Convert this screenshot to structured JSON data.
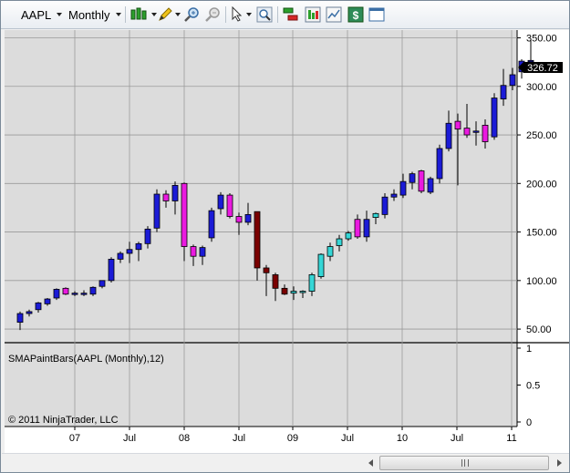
{
  "toolbar": {
    "instrument": "AAPL",
    "period": "Monthly",
    "icons": [
      "bar-type-icon",
      "drawing-tools-icon",
      "zoom-in-icon",
      "zoom-out-icon",
      "pointer-icon",
      "search-icon",
      "trade-icon",
      "data-box-icon",
      "chart-properties-icon",
      "currency-icon",
      "window-icon"
    ]
  },
  "chart": {
    "last_price_label": "326.72",
    "copyright": "© 2011 NinjaTrader, LLC",
    "indicator_label": "SMAPaintBars(AAPL (Monthly),12)",
    "background": "#dcdcdc",
    "colors": {
      "up_default": "#1b1bd6",
      "up_light": "#35d6d6",
      "down_default": "#ea1ae0",
      "down_dark": "#7a0000",
      "grid": "#9a9a9a",
      "last_price_tag": "#000000"
    }
  },
  "chart_data": {
    "type": "candlestick",
    "title": "",
    "price_axis": {
      "ticks": [
        "350.00",
        "300.00",
        "250.00",
        "200.00",
        "150.00",
        "100.00",
        "50.00"
      ],
      "range": [
        36,
        358
      ]
    },
    "indicator_axis": {
      "ticks": [
        "1",
        "0.5",
        "0"
      ],
      "range": [
        0,
        1
      ]
    },
    "time_axis": {
      "ticks": [
        "07",
        "Jul",
        "08",
        "Jul",
        "09",
        "Jul",
        "10",
        "Jul",
        "11"
      ]
    },
    "candles": [
      {
        "o": 57,
        "h": 68,
        "l": 49,
        "c": 66,
        "col": "up_default"
      },
      {
        "o": 66,
        "h": 70,
        "l": 63,
        "c": 68,
        "col": "up_default"
      },
      {
        "o": 70,
        "h": 78,
        "l": 67,
        "c": 77,
        "col": "up_default"
      },
      {
        "o": 76,
        "h": 82,
        "l": 74,
        "c": 81,
        "col": "up_default"
      },
      {
        "o": 82,
        "h": 92,
        "l": 80,
        "c": 91,
        "col": "up_default"
      },
      {
        "o": 92,
        "h": 93,
        "l": 85,
        "c": 86,
        "col": "down_default"
      },
      {
        "o": 86,
        "h": 89,
        "l": 84,
        "c": 87,
        "col": "up_default"
      },
      {
        "o": 87,
        "h": 90,
        "l": 84,
        "c": 86,
        "col": "up_default"
      },
      {
        "o": 86,
        "h": 94,
        "l": 84,
        "c": 93,
        "col": "up_default"
      },
      {
        "o": 94,
        "h": 100,
        "l": 92,
        "c": 100,
        "col": "up_default"
      },
      {
        "o": 100,
        "h": 124,
        "l": 98,
        "c": 122,
        "col": "up_default"
      },
      {
        "o": 122,
        "h": 130,
        "l": 118,
        "c": 128,
        "col": "up_default"
      },
      {
        "o": 128,
        "h": 140,
        "l": 118,
        "c": 132,
        "col": "up_default"
      },
      {
        "o": 132,
        "h": 140,
        "l": 120,
        "c": 138,
        "col": "up_default"
      },
      {
        "o": 138,
        "h": 156,
        "l": 133,
        "c": 153,
        "col": "up_default"
      },
      {
        "o": 154,
        "h": 194,
        "l": 150,
        "c": 189,
        "col": "up_default"
      },
      {
        "o": 189,
        "h": 193,
        "l": 175,
        "c": 182,
        "col": "down_default"
      },
      {
        "o": 182,
        "h": 202,
        "l": 168,
        "c": 198,
        "col": "up_default"
      },
      {
        "o": 200,
        "h": 201,
        "l": 120,
        "c": 135,
        "col": "down_default"
      },
      {
        "o": 135,
        "h": 137,
        "l": 115,
        "c": 125,
        "col": "down_default"
      },
      {
        "o": 125,
        "h": 136,
        "l": 116,
        "c": 134,
        "col": "up_default"
      },
      {
        "o": 144,
        "h": 175,
        "l": 140,
        "c": 172,
        "col": "up_default"
      },
      {
        "o": 174,
        "h": 191,
        "l": 168,
        "c": 188,
        "col": "up_default"
      },
      {
        "o": 188,
        "h": 190,
        "l": 164,
        "c": 166,
        "col": "down_default"
      },
      {
        "o": 166,
        "h": 170,
        "l": 147,
        "c": 160,
        "col": "down_default"
      },
      {
        "o": 160,
        "h": 180,
        "l": 157,
        "c": 168,
        "col": "up_default"
      },
      {
        "o": 171,
        "h": 171,
        "l": 100,
        "c": 113,
        "col": "down_dark"
      },
      {
        "o": 113,
        "h": 116,
        "l": 84,
        "c": 108,
        "col": "down_dark"
      },
      {
        "o": 106,
        "h": 108,
        "l": 79,
        "c": 92,
        "col": "down_dark"
      },
      {
        "o": 92,
        "h": 96,
        "l": 85,
        "c": 86,
        "col": "down_dark"
      },
      {
        "o": 87,
        "h": 94,
        "l": 80,
        "c": 89,
        "col": "up_light"
      },
      {
        "o": 89,
        "h": 90,
        "l": 82,
        "c": 89,
        "col": "up_light"
      },
      {
        "o": 89,
        "h": 108,
        "l": 84,
        "c": 106,
        "col": "up_light"
      },
      {
        "o": 104,
        "h": 128,
        "l": 102,
        "c": 127,
        "col": "up_light"
      },
      {
        "o": 125,
        "h": 139,
        "l": 120,
        "c": 135,
        "col": "up_light"
      },
      {
        "o": 136,
        "h": 147,
        "l": 130,
        "c": 143,
        "col": "up_light"
      },
      {
        "o": 143,
        "h": 151,
        "l": 141,
        "c": 149,
        "col": "up_light"
      },
      {
        "o": 163,
        "h": 168,
        "l": 143,
        "c": 145,
        "col": "down_default"
      }
    ],
    "candles_2": [
      {
        "o": 145,
        "h": 172,
        "l": 140,
        "c": 163,
        "col": "up_default"
      },
      {
        "o": 165,
        "h": 170,
        "l": 158,
        "c": 169,
        "col": "up_light"
      },
      {
        "o": 168,
        "h": 190,
        "l": 164,
        "c": 186,
        "col": "up_default"
      },
      {
        "o": 186,
        "h": 194,
        "l": 182,
        "c": 189,
        "col": "up_default"
      },
      {
        "o": 188,
        "h": 210,
        "l": 185,
        "c": 202,
        "col": "up_default"
      },
      {
        "o": 201,
        "h": 212,
        "l": 194,
        "c": 210,
        "col": "up_default"
      },
      {
        "o": 213,
        "h": 214,
        "l": 190,
        "c": 192,
        "col": "down_default"
      },
      {
        "o": 191,
        "h": 207,
        "l": 189,
        "c": 205,
        "col": "up_default"
      },
      {
        "o": 205,
        "h": 240,
        "l": 200,
        "c": 236,
        "col": "up_default"
      },
      {
        "o": 236,
        "h": 275,
        "l": 233,
        "c": 262,
        "col": "up_default"
      },
      {
        "o": 264,
        "h": 272,
        "l": 198,
        "c": 256,
        "col": "down_default"
      },
      {
        "o": 257,
        "h": 282,
        "l": 247,
        "c": 250,
        "col": "down_default"
      },
      {
        "o": 253,
        "h": 264,
        "l": 239,
        "c": 254,
        "col": "up_default"
      },
      {
        "o": 260,
        "h": 266,
        "l": 236,
        "c": 243,
        "col": "down_default"
      },
      {
        "o": 248,
        "h": 293,
        "l": 245,
        "c": 288,
        "col": "up_default"
      },
      {
        "o": 287,
        "h": 318,
        "l": 280,
        "c": 301,
        "col": "up_default"
      },
      {
        "o": 301,
        "h": 319,
        "l": 296,
        "c": 312,
        "col": "up_default"
      },
      {
        "o": 315,
        "h": 328,
        "l": 308,
        "c": 326,
        "col": "up_default"
      },
      {
        "o": 326,
        "h": 348,
        "l": 324,
        "c": 326.72,
        "col": "up_default"
      }
    ]
  }
}
